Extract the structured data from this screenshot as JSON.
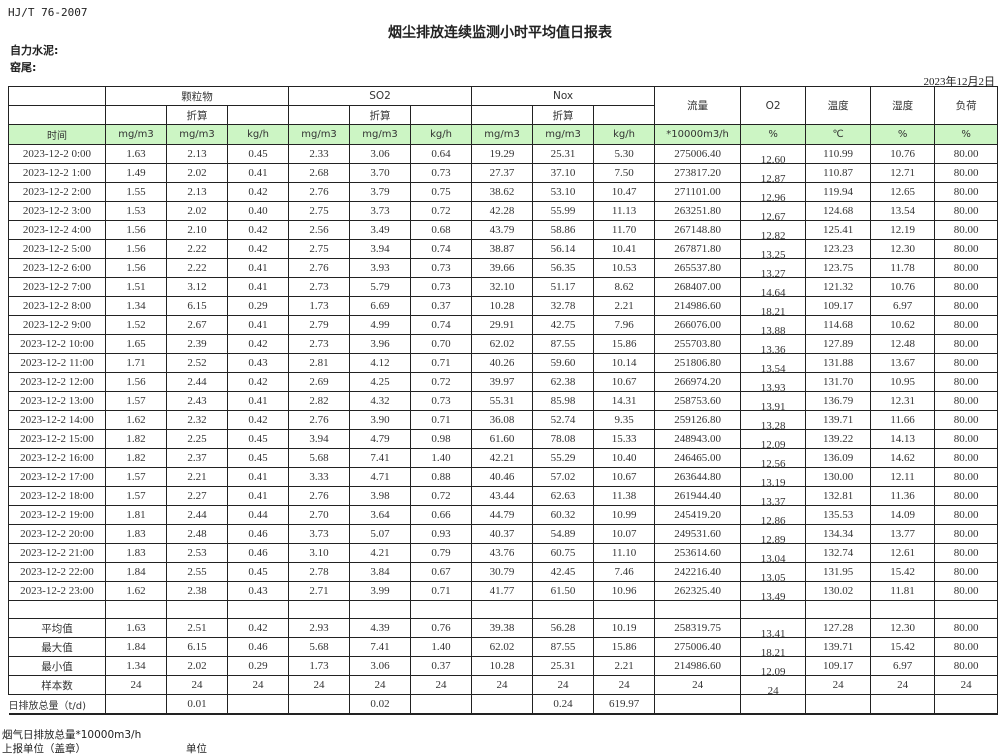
{
  "standard": "HJ/T  76-2007",
  "title": "烟尘排放连续监测小时平均值日报表",
  "company_label": "自力水泥:",
  "kiln_label": "窑尾:",
  "date": "2023年12月2日",
  "header": {
    "groups": [
      "颗粒物",
      "SO2",
      "Nox"
    ],
    "flow": "流量",
    "o2": "O2",
    "temp": "温度",
    "humidity": "湿度",
    "load": "负荷",
    "converted": "折算",
    "units": [
      "时间",
      "mg/m3",
      "mg/m3",
      "kg/h",
      "mg/m3",
      "mg/m3",
      "kg/h",
      "mg/m3",
      "mg/m3",
      "kg/h",
      "*10000m3/h",
      "%",
      "℃",
      "%",
      "%"
    ]
  },
  "rows": [
    [
      "2023-12-2 0:00",
      "1.63",
      "2.13",
      "0.45",
      "2.33",
      "3.06",
      "0.64",
      "19.29",
      "25.31",
      "5.30",
      "275006.40",
      "12.60",
      "110.99",
      "10.76",
      "80.00"
    ],
    [
      "2023-12-2 1:00",
      "1.49",
      "2.02",
      "0.41",
      "2.68",
      "3.70",
      "0.73",
      "27.37",
      "37.10",
      "7.50",
      "273817.20",
      "12.87",
      "110.87",
      "12.71",
      "80.00"
    ],
    [
      "2023-12-2 2:00",
      "1.55",
      "2.13",
      "0.42",
      "2.76",
      "3.79",
      "0.75",
      "38.62",
      "53.10",
      "10.47",
      "271101.00",
      "12.96",
      "119.94",
      "12.65",
      "80.00"
    ],
    [
      "2023-12-2 3:00",
      "1.53",
      "2.02",
      "0.40",
      "2.75",
      "3.73",
      "0.72",
      "42.28",
      "55.99",
      "11.13",
      "263251.80",
      "12.67",
      "124.68",
      "13.54",
      "80.00"
    ],
    [
      "2023-12-2 4:00",
      "1.56",
      "2.10",
      "0.42",
      "2.56",
      "3.49",
      "0.68",
      "43.79",
      "58.86",
      "11.70",
      "267148.80",
      "12.82",
      "125.41",
      "12.19",
      "80.00"
    ],
    [
      "2023-12-2 5:00",
      "1.56",
      "2.22",
      "0.42",
      "2.75",
      "3.94",
      "0.74",
      "38.87",
      "56.14",
      "10.41",
      "267871.80",
      "13.25",
      "123.23",
      "12.30",
      "80.00"
    ],
    [
      "2023-12-2 6:00",
      "1.56",
      "2.22",
      "0.41",
      "2.76",
      "3.93",
      "0.73",
      "39.66",
      "56.35",
      "10.53",
      "265537.80",
      "13.27",
      "123.75",
      "11.78",
      "80.00"
    ],
    [
      "2023-12-2 7:00",
      "1.51",
      "3.12",
      "0.41",
      "2.73",
      "5.79",
      "0.73",
      "32.10",
      "51.17",
      "8.62",
      "268407.00",
      "14.64",
      "121.32",
      "10.76",
      "80.00"
    ],
    [
      "2023-12-2 8:00",
      "1.34",
      "6.15",
      "0.29",
      "1.73",
      "6.69",
      "0.37",
      "10.28",
      "32.78",
      "2.21",
      "214986.60",
      "18.21",
      "109.17",
      "6.97",
      "80.00"
    ],
    [
      "2023-12-2 9:00",
      "1.52",
      "2.67",
      "0.41",
      "2.79",
      "4.99",
      "0.74",
      "29.91",
      "42.75",
      "7.96",
      "266076.00",
      "13.88",
      "114.68",
      "10.62",
      "80.00"
    ],
    [
      "2023-12-2 10:00",
      "1.65",
      "2.39",
      "0.42",
      "2.73",
      "3.96",
      "0.70",
      "62.02",
      "87.55",
      "15.86",
      "255703.80",
      "13.36",
      "127.89",
      "12.48",
      "80.00"
    ],
    [
      "2023-12-2 11:00",
      "1.71",
      "2.52",
      "0.43",
      "2.81",
      "4.12",
      "0.71",
      "40.26",
      "59.60",
      "10.14",
      "251806.80",
      "13.54",
      "131.88",
      "13.67",
      "80.00"
    ],
    [
      "2023-12-2 12:00",
      "1.56",
      "2.44",
      "0.42",
      "2.69",
      "4.25",
      "0.72",
      "39.97",
      "62.38",
      "10.67",
      "266974.20",
      "13.93",
      "131.70",
      "10.95",
      "80.00"
    ],
    [
      "2023-12-2 13:00",
      "1.57",
      "2.43",
      "0.41",
      "2.82",
      "4.32",
      "0.73",
      "55.31",
      "85.98",
      "14.31",
      "258753.60",
      "13.91",
      "136.79",
      "12.31",
      "80.00"
    ],
    [
      "2023-12-2 14:00",
      "1.62",
      "2.32",
      "0.42",
      "2.76",
      "3.90",
      "0.71",
      "36.08",
      "52.74",
      "9.35",
      "259126.80",
      "13.28",
      "139.71",
      "11.66",
      "80.00"
    ],
    [
      "2023-12-2 15:00",
      "1.82",
      "2.25",
      "0.45",
      "3.94",
      "4.79",
      "0.98",
      "61.60",
      "78.08",
      "15.33",
      "248943.00",
      "12.09",
      "139.22",
      "14.13",
      "80.00"
    ],
    [
      "2023-12-2 16:00",
      "1.82",
      "2.37",
      "0.45",
      "5.68",
      "7.41",
      "1.40",
      "42.21",
      "55.29",
      "10.40",
      "246465.00",
      "12.56",
      "136.09",
      "14.62",
      "80.00"
    ],
    [
      "2023-12-2 17:00",
      "1.57",
      "2.21",
      "0.41",
      "3.33",
      "4.71",
      "0.88",
      "40.46",
      "57.02",
      "10.67",
      "263644.80",
      "13.19",
      "130.00",
      "12.11",
      "80.00"
    ],
    [
      "2023-12-2 18:00",
      "1.57",
      "2.27",
      "0.41",
      "2.76",
      "3.98",
      "0.72",
      "43.44",
      "62.63",
      "11.38",
      "261944.40",
      "13.37",
      "132.81",
      "11.36",
      "80.00"
    ],
    [
      "2023-12-2 19:00",
      "1.81",
      "2.44",
      "0.44",
      "2.70",
      "3.64",
      "0.66",
      "44.79",
      "60.32",
      "10.99",
      "245419.20",
      "12.86",
      "135.53",
      "14.09",
      "80.00"
    ],
    [
      "2023-12-2 20:00",
      "1.83",
      "2.48",
      "0.46",
      "3.73",
      "5.07",
      "0.93",
      "40.37",
      "54.89",
      "10.07",
      "249531.60",
      "12.89",
      "134.34",
      "13.77",
      "80.00"
    ],
    [
      "2023-12-2 21:00",
      "1.83",
      "2.53",
      "0.46",
      "3.10",
      "4.21",
      "0.79",
      "43.76",
      "60.75",
      "11.10",
      "253614.60",
      "13.04",
      "132.74",
      "12.61",
      "80.00"
    ],
    [
      "2023-12-2 22:00",
      "1.84",
      "2.55",
      "0.45",
      "2.78",
      "3.84",
      "0.67",
      "30.79",
      "42.45",
      "7.46",
      "242216.40",
      "13.05",
      "131.95",
      "15.42",
      "80.00"
    ],
    [
      "2023-12-2 23:00",
      "1.62",
      "2.38",
      "0.43",
      "2.71",
      "3.99",
      "0.71",
      "41.77",
      "61.50",
      "10.96",
      "262325.40",
      "13.49",
      "130.02",
      "11.81",
      "80.00"
    ]
  ],
  "summary": [
    [
      "平均值",
      "1.63",
      "2.51",
      "0.42",
      "2.93",
      "4.39",
      "0.76",
      "39.38",
      "56.28",
      "10.19",
      "258319.75",
      "13.41",
      "127.28",
      "12.30",
      "80.00"
    ],
    [
      "最大值",
      "1.84",
      "6.15",
      "0.46",
      "5.68",
      "7.41",
      "1.40",
      "62.02",
      "87.55",
      "15.86",
      "275006.40",
      "18.21",
      "139.71",
      "15.42",
      "80.00"
    ],
    [
      "最小值",
      "1.34",
      "2.02",
      "0.29",
      "1.73",
      "3.06",
      "0.37",
      "10.28",
      "25.31",
      "2.21",
      "214986.60",
      "12.09",
      "109.17",
      "6.97",
      "80.00"
    ],
    [
      "样本数",
      "24",
      "24",
      "24",
      "24",
      "24",
      "24",
      "24",
      "24",
      "24",
      "24",
      "24",
      "24",
      "24",
      "24"
    ]
  ],
  "daily": [
    "日排放总量（t/d)",
    "",
    "0.01",
    "",
    "",
    "0.02",
    "",
    "",
    "0.24",
    "619.97",
    "",
    "",
    "",
    ""
  ],
  "footer": {
    "flue_gas_total": "烟气日排放总量*10000m3/h",
    "reporting_unit": "上报单位（盖章）",
    "unit": "单位"
  },
  "colors": {
    "header_bg": "#ccf5c4",
    "border": "#222222"
  }
}
